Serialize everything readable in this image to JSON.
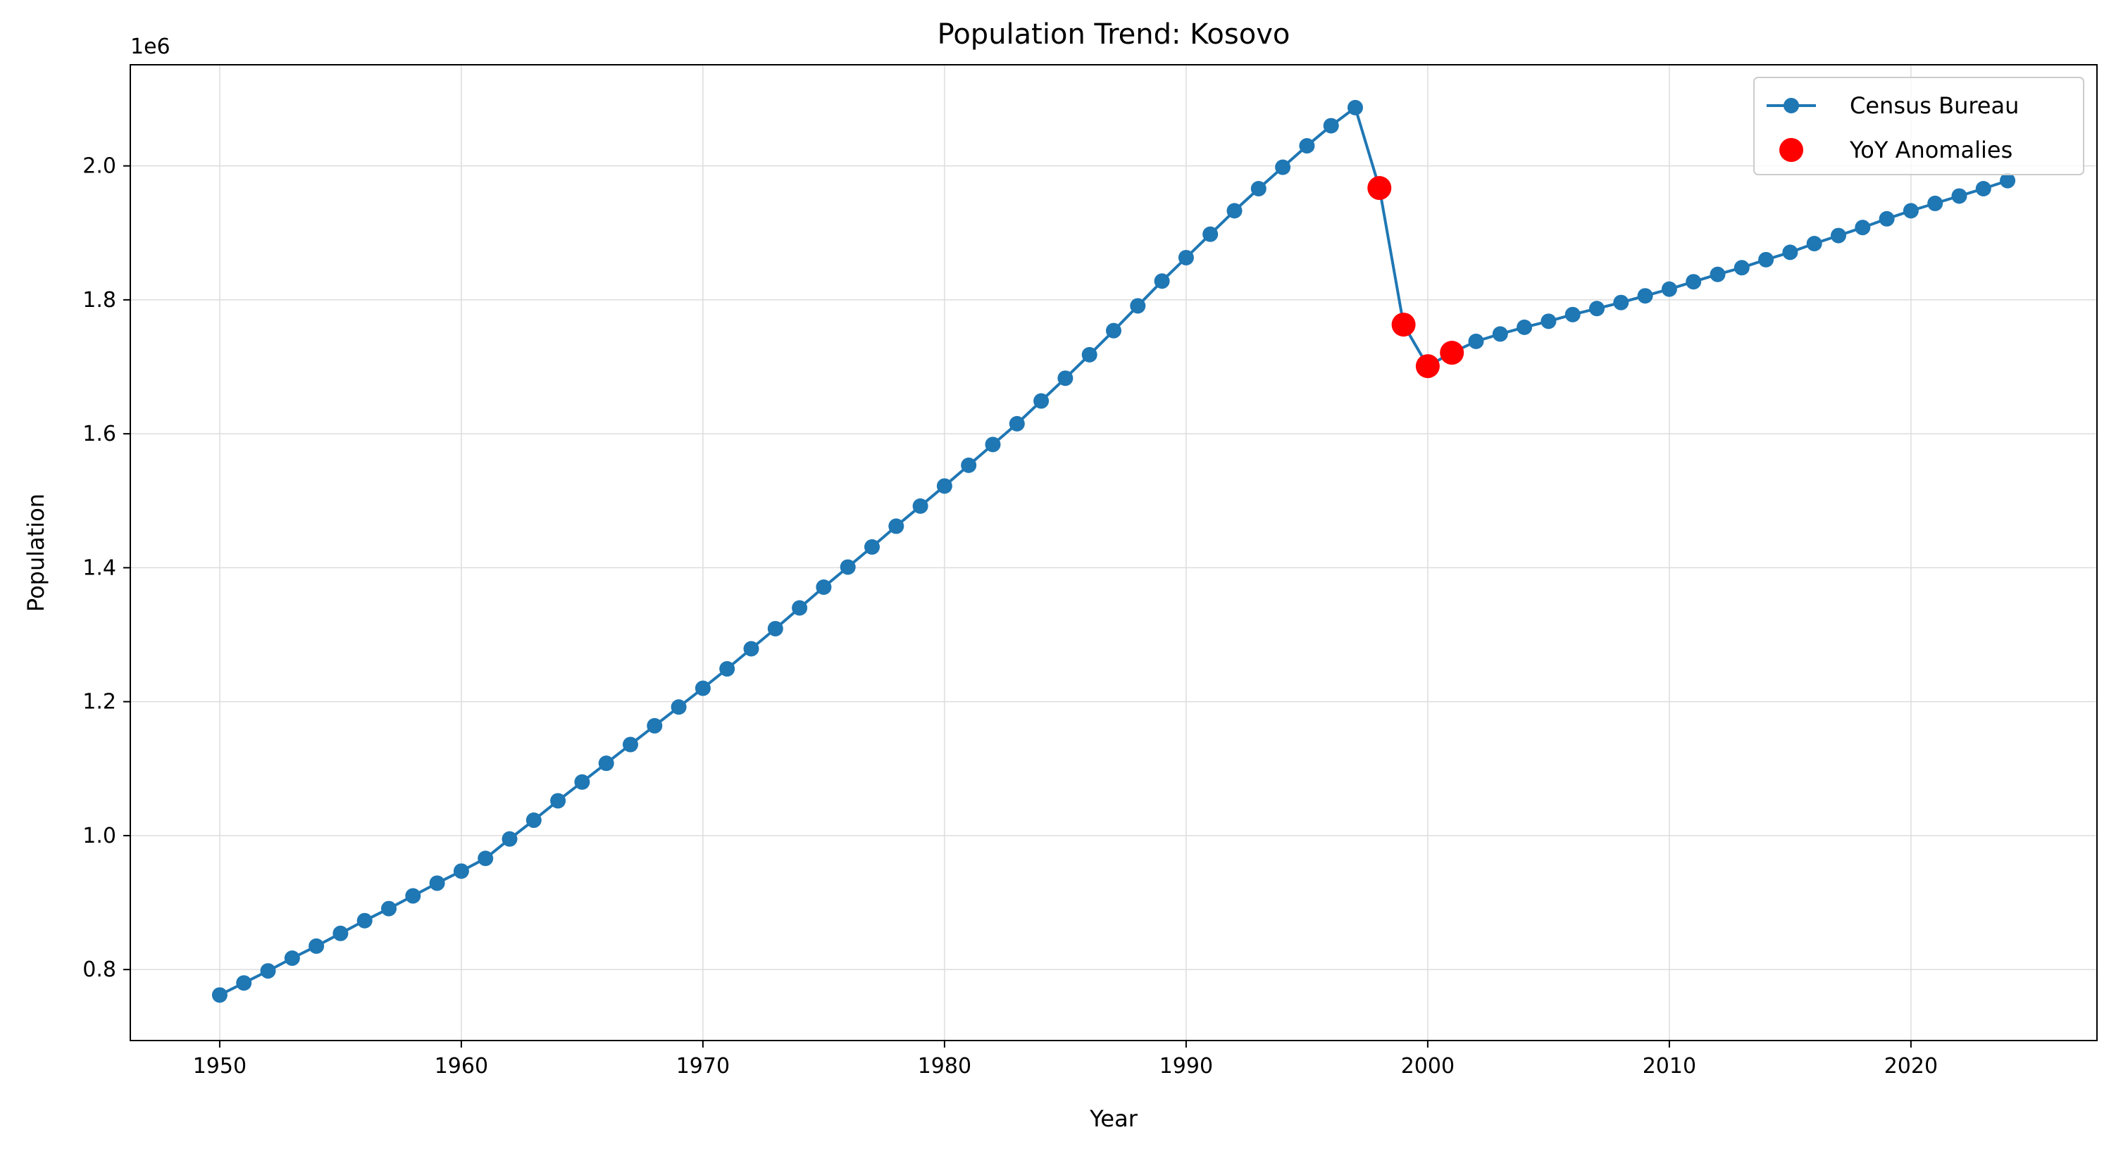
{
  "chart_data": {
    "type": "line",
    "title": "Population Trend: Kosovo",
    "xlabel": "Year",
    "ylabel": "Population",
    "y_offset_label": "1e6",
    "xlim": [
      1946.3,
      2027.7
    ],
    "ylim": [
      0.694,
      2.151
    ],
    "x_ticks": [
      1950,
      1960,
      1970,
      1980,
      1990,
      2000,
      2010,
      2020
    ],
    "y_ticks": [
      0.8,
      1.0,
      1.2,
      1.4,
      1.6,
      1.8,
      2.0
    ],
    "y_tick_labels": [
      "0.8",
      "1.0",
      "1.2",
      "1.4",
      "1.6",
      "1.8",
      "2.0"
    ],
    "grid": true,
    "legend_position": "top-right",
    "x": [
      1950,
      1951,
      1952,
      1953,
      1954,
      1955,
      1956,
      1957,
      1958,
      1959,
      1960,
      1961,
      1962,
      1963,
      1964,
      1965,
      1966,
      1967,
      1968,
      1969,
      1970,
      1971,
      1972,
      1973,
      1974,
      1975,
      1976,
      1977,
      1978,
      1979,
      1980,
      1981,
      1982,
      1983,
      1984,
      1985,
      1986,
      1987,
      1988,
      1989,
      1990,
      1991,
      1992,
      1993,
      1994,
      1995,
      1996,
      1997,
      1998,
      1999,
      2000,
      2001,
      2002,
      2003,
      2004,
      2005,
      2006,
      2007,
      2008,
      2009,
      2010,
      2011,
      2012,
      2013,
      2014,
      2015,
      2016,
      2017,
      2018,
      2019,
      2020,
      2021,
      2022,
      2023,
      2024
    ],
    "series": [
      {
        "name": "Census Bureau",
        "color": "#1f77b4",
        "marker": "circle",
        "values": [
          0.762,
          0.78,
          0.798,
          0.817,
          0.835,
          0.854,
          0.873,
          0.891,
          0.91,
          0.929,
          0.947,
          0.966,
          0.995,
          1.023,
          1.052,
          1.08,
          1.108,
          1.136,
          1.164,
          1.192,
          1.22,
          1.249,
          1.279,
          1.309,
          1.34,
          1.371,
          1.401,
          1.431,
          1.462,
          1.492,
          1.522,
          1.553,
          1.584,
          1.615,
          1.649,
          1.683,
          1.718,
          1.754,
          1.791,
          1.828,
          1.863,
          1.898,
          1.933,
          1.966,
          1.998,
          2.03,
          2.06,
          2.087,
          1.967,
          1.763,
          1.701,
          1.721,
          1.738,
          1.749,
          1.759,
          1.768,
          1.778,
          1.787,
          1.796,
          1.806,
          1.816,
          1.827,
          1.838,
          1.848,
          1.86,
          1.871,
          1.884,
          1.896,
          1.908,
          1.921,
          1.933,
          1.944,
          1.955,
          1.966,
          1.978
        ]
      },
      {
        "name": "YoY Anomalies",
        "color": "#ff0000",
        "marker": "circle",
        "type": "scatter",
        "x": [
          1998,
          1999,
          2000,
          2001
        ],
        "values": [
          1.967,
          1.763,
          1.701,
          1.721
        ]
      }
    ]
  }
}
